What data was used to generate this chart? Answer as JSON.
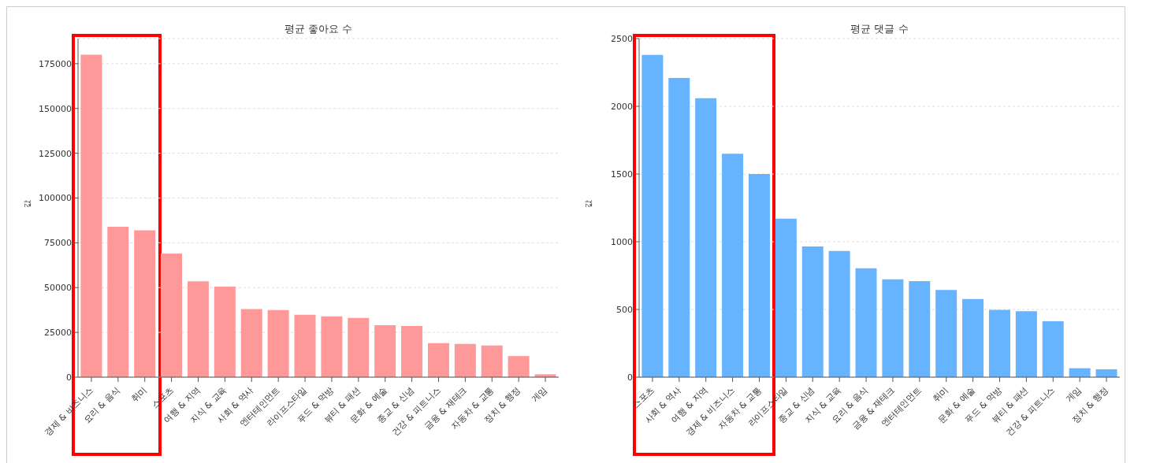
{
  "chart_data": [
    {
      "type": "bar",
      "title": "평균 좋아요 수",
      "ylabel": "값",
      "categories": [
        "경제 & 비즈니스",
        "요리 & 음식",
        "취미",
        "스포츠",
        "여행 & 지역",
        "지식 & 교육",
        "사회 & 역사",
        "엔터테인먼트",
        "라이프스타일",
        "푸드 & 먹방",
        "뷰티 & 패션",
        "문화 & 예술",
        "종교 & 신념",
        "건강 & 피트니스",
        "금융 & 재테크",
        "자동차 & 교통",
        "정치 & 행정",
        "게임"
      ],
      "values": [
        180000,
        84000,
        82000,
        69000,
        53500,
        50500,
        38000,
        37500,
        34800,
        34000,
        33100,
        29000,
        28600,
        19000,
        18600,
        17700,
        11800,
        1600
      ],
      "color": "#ff9999",
      "ylim": [
        0,
        189000
      ],
      "yticks": [
        0,
        25000,
        50000,
        75000,
        100000,
        125000,
        150000,
        175000
      ],
      "grid": "y"
    },
    {
      "type": "bar",
      "title": "평균 댓글 수",
      "ylabel": "값",
      "categories": [
        "스포츠",
        "사회 & 역사",
        "여행 & 지역",
        "경제 & 비즈니스",
        "자동차 & 교통",
        "라이프스타일",
        "종교 & 신념",
        "지식 & 교육",
        "요리 & 음식",
        "금융 & 재테크",
        "엔터테인먼트",
        "취미",
        "문화 & 예술",
        "푸드 & 먹방",
        "뷰티 & 패션",
        "건강 & 피트니스",
        "게임",
        "정치 & 행정"
      ],
      "values": [
        2380,
        2210,
        2060,
        1650,
        1500,
        1170,
        965,
        932,
        804,
        722,
        710,
        644,
        577,
        497,
        487,
        413,
        66,
        58
      ],
      "color": "#66b3ff",
      "ylim": [
        0,
        2500
      ],
      "yticks": [
        0,
        500,
        1000,
        1500,
        2000,
        2500
      ],
      "grid": "y"
    }
  ]
}
